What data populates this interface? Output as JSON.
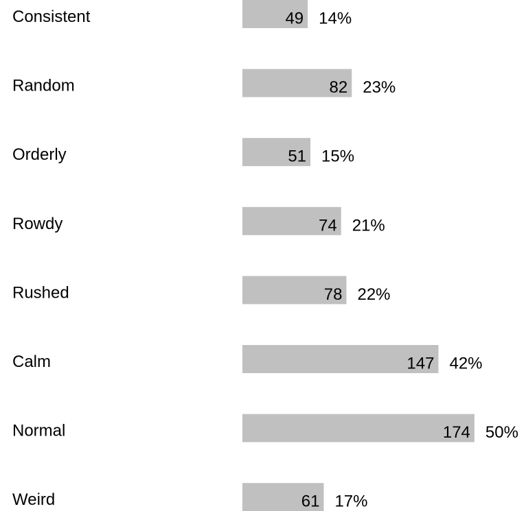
{
  "chart_data": {
    "type": "bar",
    "orientation": "horizontal",
    "categories": [
      "Consistent",
      "Random",
      "Orderly",
      "Rowdy",
      "Rushed",
      "Calm",
      "Normal",
      "Weird"
    ],
    "values": [
      49,
      82,
      51,
      74,
      78,
      147,
      174,
      61
    ],
    "percentages": [
      "14%",
      "23%",
      "15%",
      "21%",
      "22%",
      "42%",
      "50%",
      "17%"
    ],
    "bar_color": "#c0c0c0",
    "grid": false,
    "legend": "none"
  }
}
